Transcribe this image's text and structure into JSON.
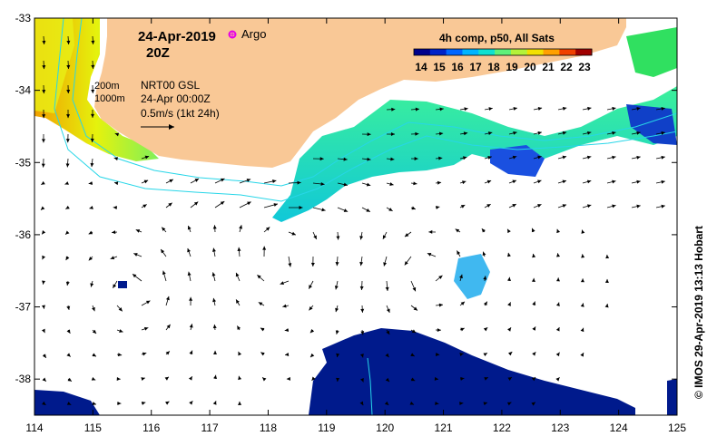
{
  "map": {
    "lon_range": [
      114,
      125
    ],
    "lat_range": [
      -38.5,
      -33
    ],
    "lon_ticks": [
      "114",
      "115",
      "116",
      "117",
      "118",
      "119",
      "120",
      "121",
      "122",
      "123",
      "124",
      "125"
    ],
    "lat_ticks": [
      "-33",
      "-34",
      "-35",
      "-36",
      "-37",
      "-38"
    ],
    "colors": {
      "land": "#f9c896",
      "ocean": "#ffffff",
      "isobath": "#27d6e8",
      "sst_cold": "#001a8c",
      "sst_warm": "#e5f20d"
    }
  },
  "title": {
    "date": "24-Apr-2019",
    "time": "20Z",
    "argo_label": "Argo",
    "argo_color": "#e600e6"
  },
  "legend": {
    "isobath_200": "200m",
    "isobath_1000": "1000m",
    "current_source": "NRT00 GSL",
    "current_date": "24-Apr 00:00Z",
    "scale_label": "0.5m/s (1kt 24h)"
  },
  "colorbar": {
    "title": "4h comp, p50, All Sats",
    "ticks": [
      "14",
      "15",
      "16",
      "17",
      "18",
      "19",
      "20",
      "21",
      "22",
      "23"
    ],
    "colors": [
      "#00008c",
      "#0022c8",
      "#0066ff",
      "#00b4ff",
      "#10e0d0",
      "#5ff07a",
      "#b4f23a",
      "#f2e000",
      "#ffa000",
      "#f04000",
      "#a00000"
    ]
  },
  "copyright": "© IMOS 29-Apr-2019 13:13 Hobart"
}
